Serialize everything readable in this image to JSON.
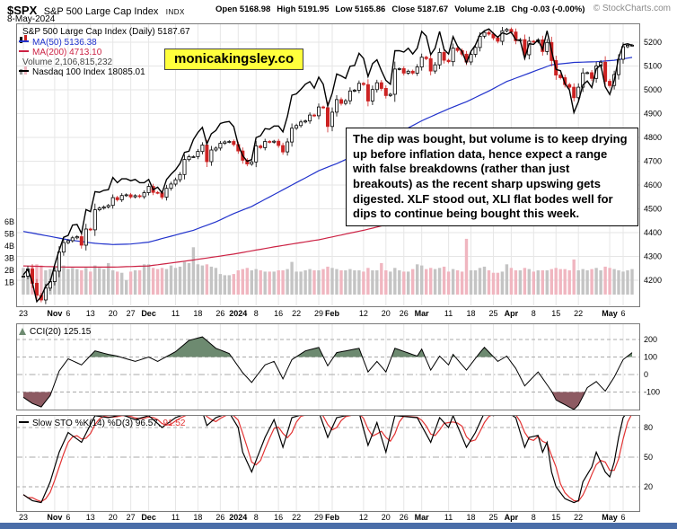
{
  "header": {
    "symbol": "$SPX",
    "name": "S&P 500 Large Cap Index",
    "exchange": "INDX",
    "date": "8-May-2024",
    "copyright": "© StockCharts.com",
    "quote": [
      {
        "l": "Open",
        "v": "5168.98"
      },
      {
        "l": "High",
        "v": "5191.95"
      },
      {
        "l": "Low",
        "v": "5165.86"
      },
      {
        "l": "Close",
        "v": "5187.67"
      },
      {
        "l": "Volume",
        "v": "2.1B"
      },
      {
        "l": "Chg",
        "v": "-0.03 (-0.00%)"
      }
    ]
  },
  "watermark": "monicakingsley.co",
  "annotation": "The dip was bought, but volume is to keep drying up before inflation data, hence expect a range with false breakdowns (rather than just breakouts) as the recent sharp upswing gets digested. XLF stood out, XLI flat bodes well for dips to continue being bought this week.",
  "legend": {
    "price": "S&P 500 Large Cap Index (Daily) 5187.67",
    "ma50": "MA(50) 5136.38",
    "ma200": "MA(200) 4713.10",
    "volume": "Volume 2,106,815,232",
    "overlay": "Nasdaq 100 Index 18085.01",
    "cci": "CCI(20) 125.15",
    "sto_black": "Slow STO %K(14) %D(3) 96.57,",
    "sto_red": "91.52"
  },
  "colors": {
    "ma50": "#2233cc",
    "ma200": "#cc2244",
    "candle_down": "#cc2222",
    "vol_up": "#c4c4c4",
    "vol_down": "#f0b6c0",
    "cci_pos": "#6d8a70",
    "cci_neg": "#8d5a62",
    "sto_k": "#000000",
    "sto_d": "#e23333",
    "grid": "#e6e6e6",
    "border": "#7a7a7a",
    "dashed": "#aaaaaa",
    "legend_volume": "#444444",
    "watermark_bg": "#ffff3c",
    "bottom_bar": "#4a6da8"
  },
  "chart_data": {
    "type": "candlestick",
    "title": "S&P 500 Large Cap Index (Daily)",
    "legend_position": "top-left",
    "grid": true,
    "x_ticks": [
      {
        "label": "23",
        "i": 0
      },
      {
        "label": "Nov",
        "i": 7
      },
      {
        "label": "6",
        "i": 10
      },
      {
        "label": "13",
        "i": 15
      },
      {
        "label": "20",
        "i": 20
      },
      {
        "label": "27",
        "i": 24
      },
      {
        "label": "Dec",
        "i": 28
      },
      {
        "label": "11",
        "i": 34
      },
      {
        "label": "18",
        "i": 39
      },
      {
        "label": "26",
        "i": 44
      },
      {
        "label": "2024",
        "i": 48
      },
      {
        "label": "8",
        "i": 52
      },
      {
        "label": "16",
        "i": 57
      },
      {
        "label": "22",
        "i": 61
      },
      {
        "label": "29",
        "i": 66
      },
      {
        "label": "Feb",
        "i": 69
      },
      {
        "label": "12",
        "i": 76
      },
      {
        "label": "20",
        "i": 81
      },
      {
        "label": "26",
        "i": 85
      },
      {
        "label": "Mar",
        "i": 89
      },
      {
        "label": "11",
        "i": 95
      },
      {
        "label": "18",
        "i": 100
      },
      {
        "label": "25",
        "i": 105
      },
      {
        "label": "Apr",
        "i": 109
      },
      {
        "label": "8",
        "i": 114
      },
      {
        "label": "15",
        "i": 119
      },
      {
        "label": "22",
        "i": 124
      },
      {
        "label": "May",
        "i": 131
      },
      {
        "label": "6",
        "i": 134
      }
    ],
    "price": {
      "ylim": [
        4200,
        5200
      ],
      "yticks": [
        5200,
        5100,
        5000,
        4900,
        4800,
        4700,
        4600,
        4500,
        4400,
        4300,
        4200
      ],
      "last": 5187.67,
      "close": [
        4217,
        4247,
        4187,
        4137,
        4117,
        4167,
        4194,
        4238,
        4318,
        4358,
        4366,
        4378,
        4383,
        4347,
        4415,
        4412,
        4496,
        4503,
        4508,
        4514,
        4547,
        4538,
        4556,
        4559,
        4550,
        4555,
        4551,
        4568,
        4594,
        4569,
        4567,
        4549,
        4586,
        4604,
        4622,
        4644,
        4707,
        4719,
        4719,
        4741,
        4768,
        4698,
        4747,
        4755,
        4775,
        4781,
        4783,
        4770,
        4743,
        4704,
        4688,
        4697,
        4764,
        4757,
        4783,
        4780,
        4784,
        4766,
        4739,
        4781,
        4839,
        4850,
        4865,
        4869,
        4894,
        4891,
        4928,
        4925,
        4846,
        4906,
        4959,
        4943,
        4954,
        4995,
        4998,
        5027,
        5022,
        4953,
        5001,
        5030,
        5006,
        4976,
        4981,
        5087,
        5089,
        5070,
        5078,
        5070,
        5096,
        5137,
        5131,
        5079,
        5105,
        5157,
        5124,
        5118,
        5175,
        5165,
        5150,
        5117,
        5149,
        5178,
        5225,
        5241,
        5234,
        5218,
        5204,
        5248,
        5254,
        5243,
        5206,
        5211,
        5147,
        5204,
        5202,
        5210,
        5161,
        5199,
        5123,
        5062,
        5051,
        5022,
        5011,
        4967,
        5011,
        5071,
        5072,
        5048,
        5100,
        5116,
        5036,
        5018,
        5064,
        5128,
        5181,
        5187,
        5187.67
      ]
    },
    "nasdaq": {
      "name": "Nasdaq 100 Index",
      "last": 18085.01,
      "map_ref": {
        "from": [
          14100,
          18085
        ],
        "to": [
          4110,
          5187
        ]
      },
      "values": [
        14520,
        14600,
        14400,
        14100,
        14180,
        14340,
        14410,
        14670,
        14900,
        15100,
        15130,
        15290,
        15300,
        15160,
        15530,
        15500,
        15810,
        15800,
        15830,
        15840,
        16030,
        15950,
        16010,
        16010,
        15980,
        16000,
        15950,
        15950,
        16000,
        15840,
        15880,
        15790,
        16000,
        16080,
        16150,
        16250,
        16420,
        16440,
        16620,
        16730,
        16810,
        16550,
        16710,
        16760,
        16870,
        16890,
        16900,
        16820,
        16540,
        16370,
        16280,
        16310,
        16650,
        16680,
        16790,
        16780,
        16830,
        16830,
        16740,
        16980,
        17310,
        17330,
        17400,
        17480,
        17520,
        17420,
        17590,
        17480,
        17140,
        17340,
        17640,
        17610,
        17570,
        17760,
        17770,
        17960,
        17880,
        17600,
        17800,
        17860,
        17690,
        17540,
        17480,
        18000,
        18000,
        17980,
        18040,
        17950,
        18040,
        18300,
        18230,
        17940,
        18040,
        18300,
        18020,
        17950,
        18220,
        18070,
        17990,
        17810,
        17990,
        18090,
        18250,
        18310,
        18340,
        18270,
        18210,
        18280,
        18255,
        18290,
        18170,
        18160,
        17880,
        18110,
        18100,
        18170,
        18020,
        18310,
        18000,
        17710,
        17690,
        17490,
        17390,
        17040,
        17210,
        17470,
        17530,
        17430,
        17720,
        17780,
        17440,
        17320,
        17540,
        17890,
        18093,
        18110,
        18085.01
      ]
    },
    "ma50": {
      "last": 5136.38,
      "anchors": [
        [
          0,
          4405
        ],
        [
          10,
          4370
        ],
        [
          16,
          4355
        ],
        [
          20,
          4350
        ],
        [
          24,
          4352
        ],
        [
          28,
          4360
        ],
        [
          34,
          4390
        ],
        [
          38,
          4410
        ],
        [
          43,
          4445
        ],
        [
          47,
          4480
        ],
        [
          51,
          4510
        ],
        [
          56,
          4560
        ],
        [
          61,
          4610
        ],
        [
          66,
          4660
        ],
        [
          70,
          4690
        ],
        [
          76,
          4740
        ],
        [
          81,
          4790
        ],
        [
          85,
          4830
        ],
        [
          89,
          4870
        ],
        [
          95,
          4920
        ],
        [
          99,
          4950
        ],
        [
          104,
          4995
        ],
        [
          108,
          5035
        ],
        [
          113,
          5070
        ],
        [
          118,
          5105
        ],
        [
          123,
          5115
        ],
        [
          128,
          5118
        ],
        [
          132,
          5124
        ],
        [
          136,
          5136.38
        ]
      ]
    },
    "ma200": {
      "last": 4713.1,
      "anchors": [
        [
          0,
          4260
        ],
        [
          10,
          4255
        ],
        [
          20,
          4255
        ],
        [
          28,
          4260
        ],
        [
          38,
          4285
        ],
        [
          47,
          4310
        ],
        [
          56,
          4340
        ],
        [
          66,
          4370
        ],
        [
          76,
          4410
        ],
        [
          85,
          4450
        ],
        [
          95,
          4500
        ],
        [
          104,
          4550
        ],
        [
          113,
          4600
        ],
        [
          123,
          4655
        ],
        [
          130,
          4685
        ],
        [
          136,
          4713.1
        ]
      ]
    },
    "volume": {
      "last": 2106815232,
      "yticks_B": [
        1,
        2,
        3,
        4,
        5,
        6
      ],
      "values_B": [
        2.2,
        2.1,
        2.3,
        2.5,
        2.4,
        2.0,
        2.1,
        2.3,
        2.2,
        2.4,
        2.1,
        2.2,
        2.1,
        2.0,
        2.2,
        1.9,
        2.4,
        2.2,
        2.1,
        2.6,
        2.0,
        1.9,
        1.8,
        1.2,
        1.9,
        2.0,
        2.0,
        2.5,
        2.5,
        2.2,
        2.1,
        2.2,
        2.1,
        2.4,
        2.2,
        2.3,
        2.7,
        2.6,
        3.9,
        2.5,
        2.4,
        2.5,
        2.3,
        2.2,
        1.7,
        1.6,
        1.6,
        1.7,
        2.0,
        2.1,
        2.2,
        2.0,
        2.1,
        2.0,
        1.9,
        1.9,
        1.9,
        2.0,
        2.0,
        2.1,
        2.7,
        1.9,
        1.9,
        2.0,
        2.1,
        2.0,
        2.0,
        2.1,
        2.3,
        2.2,
        2.1,
        2.0,
        2.0,
        2.1,
        2.0,
        2.0,
        1.9,
        2.2,
        2.0,
        2.0,
        2.6,
        2.0,
        1.9,
        2.2,
        2.0,
        1.9,
        1.9,
        2.1,
        2.5,
        2.4,
        2.1,
        2.2,
        2.1,
        2.2,
        2.3,
        1.9,
        2.1,
        2.0,
        1.9,
        4.6,
        2.0,
        2.0,
        2.2,
        2.3,
        2.0,
        1.8,
        1.8,
        1.9,
        2.5,
        2.2,
        2.0,
        2.0,
        2.2,
        2.1,
        1.9,
        2.0,
        2.0,
        2.0,
        2.1,
        2.2,
        2.1,
        2.1,
        2.0,
        2.9,
        2.0,
        2.1,
        2.0,
        2.1,
        2.2,
        2.0,
        2.3,
        2.2,
        2.1,
        2.0,
        1.9,
        2.0,
        2.1
      ]
    },
    "cci": {
      "last": 125.15,
      "yticks": [
        200,
        100,
        0,
        -100
      ],
      "anchors": [
        [
          0,
          -130
        ],
        [
          2,
          -165
        ],
        [
          4,
          -185
        ],
        [
          6,
          -120
        ],
        [
          8,
          20
        ],
        [
          10,
          90
        ],
        [
          13,
          55
        ],
        [
          16,
          135
        ],
        [
          19,
          115
        ],
        [
          21,
          105
        ],
        [
          25,
          75
        ],
        [
          28,
          100
        ],
        [
          30,
          75
        ],
        [
          34,
          130
        ],
        [
          37,
          195
        ],
        [
          40,
          215
        ],
        [
          43,
          150
        ],
        [
          46,
          120
        ],
        [
          49,
          10
        ],
        [
          51,
          -45
        ],
        [
          54,
          55
        ],
        [
          56,
          75
        ],
        [
          58,
          -25
        ],
        [
          60,
          85
        ],
        [
          63,
          135
        ],
        [
          66,
          155
        ],
        [
          68,
          50
        ],
        [
          70,
          125
        ],
        [
          75,
          150
        ],
        [
          77,
          15
        ],
        [
          79,
          75
        ],
        [
          81,
          15
        ],
        [
          83,
          150
        ],
        [
          88,
          105
        ],
        [
          89,
          145
        ],
        [
          91,
          25
        ],
        [
          93,
          105
        ],
        [
          95,
          55
        ],
        [
          96,
          115
        ],
        [
          99,
          25
        ],
        [
          102,
          125
        ],
        [
          103,
          155
        ],
        [
          106,
          75
        ],
        [
          108,
          105
        ],
        [
          110,
          35
        ],
        [
          112,
          -65
        ],
        [
          115,
          15
        ],
        [
          118,
          -95
        ],
        [
          119,
          -145
        ],
        [
          123,
          -200
        ],
        [
          124,
          -175
        ],
        [
          126,
          -75
        ],
        [
          128,
          -40
        ],
        [
          130,
          -95
        ],
        [
          132,
          -15
        ],
        [
          134,
          85
        ],
        [
          136,
          125.15
        ]
      ]
    },
    "sto": {
      "k_last": 96.57,
      "d_last": 91.52,
      "yticks": [
        80,
        50,
        20
      ],
      "k_anchors": [
        [
          0,
          12
        ],
        [
          2,
          6
        ],
        [
          4,
          4
        ],
        [
          6,
          25
        ],
        [
          8,
          55
        ],
        [
          10,
          75
        ],
        [
          13,
          65
        ],
        [
          16,
          92
        ],
        [
          19,
          90
        ],
        [
          22,
          93
        ],
        [
          25,
          88
        ],
        [
          28,
          92
        ],
        [
          31,
          80
        ],
        [
          34,
          90
        ],
        [
          37,
          95
        ],
        [
          40,
          96
        ],
        [
          41,
          82
        ],
        [
          43,
          90
        ],
        [
          46,
          95
        ],
        [
          48,
          80
        ],
        [
          49,
          55
        ],
        [
          51,
          35
        ],
        [
          54,
          70
        ],
        [
          56,
          88
        ],
        [
          58,
          60
        ],
        [
          60,
          90
        ],
        [
          63,
          94
        ],
        [
          66,
          96
        ],
        [
          68,
          70
        ],
        [
          70,
          90
        ],
        [
          75,
          95
        ],
        [
          77,
          62
        ],
        [
          79,
          85
        ],
        [
          81,
          55
        ],
        [
          83,
          92
        ],
        [
          88,
          90
        ],
        [
          91,
          65
        ],
        [
          93,
          90
        ],
        [
          95,
          80
        ],
        [
          96,
          92
        ],
        [
          99,
          60
        ],
        [
          101,
          75
        ],
        [
          103,
          95
        ],
        [
          105,
          92
        ],
        [
          108,
          96
        ],
        [
          110,
          90
        ],
        [
          112,
          60
        ],
        [
          113,
          70
        ],
        [
          115,
          72
        ],
        [
          116,
          55
        ],
        [
          117,
          65
        ],
        [
          118,
          35
        ],
        [
          119,
          20
        ],
        [
          121,
          8
        ],
        [
          123,
          4
        ],
        [
          124,
          6
        ],
        [
          125,
          25
        ],
        [
          127,
          40
        ],
        [
          128,
          55
        ],
        [
          130,
          35
        ],
        [
          131,
          30
        ],
        [
          132,
          45
        ],
        [
          133,
          70
        ],
        [
          134,
          90
        ],
        [
          135,
          96
        ],
        [
          136,
          96.57
        ]
      ]
    }
  }
}
